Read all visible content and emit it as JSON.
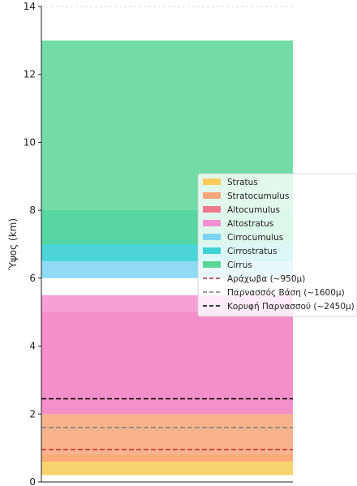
{
  "chart_data": {
    "type": "bar",
    "ylabel": "Ύψος (km)",
    "ylim": [
      0,
      14
    ],
    "yticks": [
      0,
      2,
      4,
      6,
      8,
      10,
      12,
      14
    ],
    "grid": false,
    "legend_position": "right",
    "bands": [
      {
        "name": "Stratus",
        "range": [
          0.2,
          0.8
        ],
        "color": "#f9cb58"
      },
      {
        "name": "Stratocumulus",
        "range": [
          0.6,
          2.0
        ],
        "color": "#f7a678"
      },
      {
        "name": "Altocumulus",
        "range": [
          2.0,
          5.0
        ],
        "color": "#f07a8d"
      },
      {
        "name": "Altostratus",
        "range": [
          2.0,
          5.5
        ],
        "color": "#f48fd0"
      },
      {
        "name": "Cirrocumulus",
        "range": [
          6.0,
          8.0
        ],
        "color": "#7ed3f3"
      },
      {
        "name": "Cirrostratus",
        "range": [
          6.5,
          8.0
        ],
        "color": "#3ed3d4"
      },
      {
        "name": "Cirrus",
        "range": [
          7.0,
          13.0
        ],
        "color": "#5ad696"
      }
    ],
    "reference_lines": [
      {
        "name": "Αράχωβα (~950μ)",
        "y": 0.95,
        "color": "#c62828",
        "dash": "dashed"
      },
      {
        "name": "Παρνασσός Βάση (~1600μ)",
        "y": 1.6,
        "color": "#7f7f7f",
        "dash": "dashed"
      },
      {
        "name": "Κορυφή Παρνασσού (~2450μ)",
        "y": 2.45,
        "color": "#000000",
        "dash": "dashed"
      }
    ]
  }
}
